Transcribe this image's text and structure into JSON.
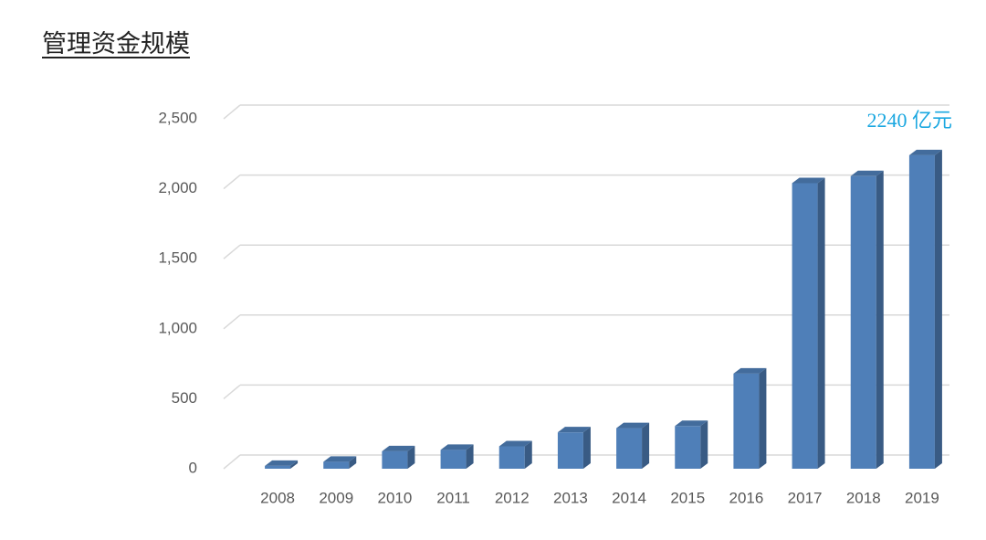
{
  "chart_data": {
    "type": "bar3d",
    "title": "管理资金规模",
    "categories": [
      "2008",
      "2009",
      "2010",
      "2011",
      "2012",
      "2013",
      "2014",
      "2015",
      "2016",
      "2017",
      "2018",
      "2019"
    ],
    "values": [
      20,
      50,
      125,
      135,
      160,
      260,
      290,
      305,
      680,
      2040,
      2090,
      2240
    ],
    "color": "#4f7fb8",
    "annotation": "2240 亿元",
    "annotation_color": "#1aa7e0",
    "ylim": [
      0,
      2500
    ],
    "yticks": [
      0,
      500,
      {
        "value": 1000,
        "label": "1,000"
      },
      {
        "value": 1500,
        "label": "1,500"
      },
      {
        "value": 2000,
        "label": "2,000"
      },
      {
        "value": 2500,
        "label": "2,500"
      }
    ],
    "grid": true
  }
}
